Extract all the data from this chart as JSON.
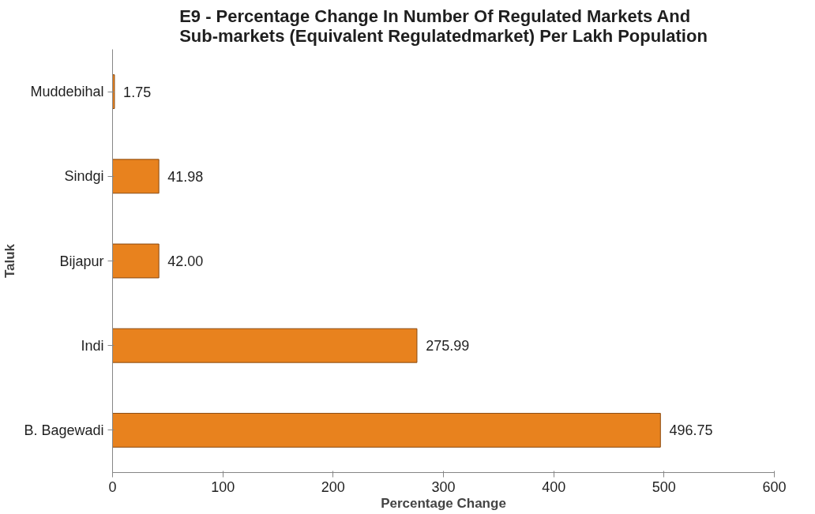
{
  "chart_data": {
    "type": "bar",
    "orientation": "horizontal",
    "title": "E9 -  Percentage Change In Number Of Regulated Markets And Sub-markets (Equivalent Regulatedmarket) Per Lakh Population",
    "xlabel": "Percentage Change",
    "ylabel": "Taluk",
    "categories": [
      "Muddebihal",
      "Sindgi",
      "Bijapur",
      "Indi",
      "B. Bagewadi"
    ],
    "values": [
      1.75,
      41.98,
      42.0,
      275.99,
      496.75
    ],
    "value_labels": [
      "1.75",
      "41.98",
      "42.00",
      "275.99",
      "496.75"
    ],
    "color": "#e8821e",
    "xlim": [
      0,
      600
    ],
    "xticks": [
      0,
      100,
      200,
      300,
      400,
      500,
      600
    ],
    "grid": false
  }
}
